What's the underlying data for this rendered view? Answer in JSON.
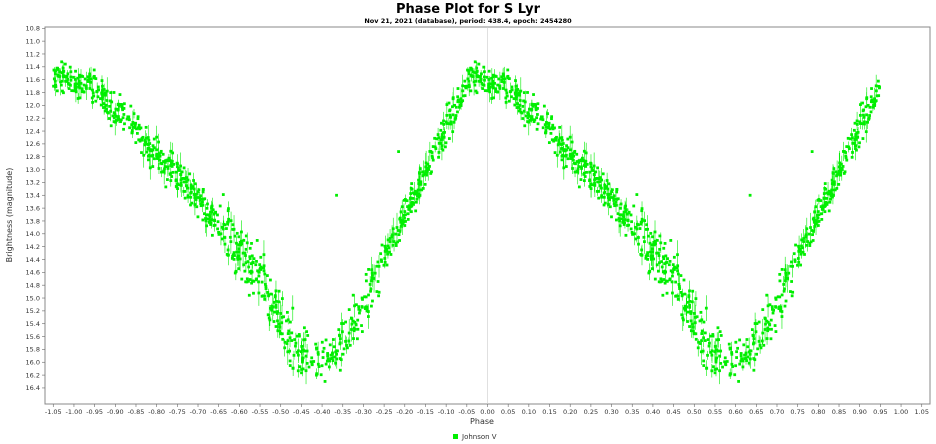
{
  "chart_data": {
    "type": "scatter",
    "title": "Phase Plot for S Lyr",
    "subtitle": "Nov 21, 2021 (database), period: 438.4, epoch: 2454280",
    "xlabel": "Phase",
    "ylabel": "Brightness (magnitude)",
    "xlim": [
      -1.07,
      1.07
    ],
    "ylim": [
      16.65,
      10.78
    ],
    "y_inverted": true,
    "x_ticks": [
      "-1.05",
      "-1.00",
      "-0.95",
      "-0.90",
      "-0.85",
      "-0.80",
      "-0.75",
      "-0.70",
      "-0.65",
      "-0.60",
      "-0.55",
      "-0.50",
      "-0.45",
      "-0.40",
      "-0.35",
      "-0.30",
      "-0.25",
      "-0.20",
      "-0.15",
      "-0.10",
      "-0.05",
      "0.00",
      "0.05",
      "0.10",
      "0.15",
      "0.20",
      "0.25",
      "0.30",
      "0.35",
      "0.40",
      "0.45",
      "0.50",
      "0.55",
      "0.60",
      "0.65",
      "0.70",
      "0.75",
      "0.80",
      "0.85",
      "0.90",
      "0.95",
      "1.00",
      "1.05"
    ],
    "y_ticks": [
      "10.8",
      "11.0",
      "11.2",
      "11.4",
      "11.6",
      "11.8",
      "12.0",
      "12.2",
      "12.4",
      "12.6",
      "12.8",
      "13.0",
      "13.2",
      "13.4",
      "13.6",
      "13.8",
      "14.0",
      "14.2",
      "14.4",
      "14.6",
      "14.8",
      "15.0",
      "15.2",
      "15.4",
      "15.6",
      "15.8",
      "16.0",
      "16.2",
      "16.4"
    ],
    "grid": false,
    "legend": "bottom-center",
    "series": [
      {
        "name": "Johnson V",
        "color": "#00ee00",
        "light_curve": {
          "phase": [
            -0.05,
            0.0,
            0.05,
            0.1,
            0.15,
            0.2,
            0.25,
            0.3,
            0.35,
            0.4,
            0.45,
            0.5,
            0.55,
            0.6,
            0.65,
            0.7,
            0.75,
            0.8,
            0.85,
            0.9,
            0.95
          ],
          "magnitude": [
            11.52,
            11.62,
            11.75,
            12.05,
            12.38,
            12.75,
            13.1,
            13.48,
            13.85,
            14.25,
            14.7,
            15.35,
            15.85,
            16.05,
            15.7,
            15.1,
            14.4,
            13.7,
            13.05,
            12.3,
            11.75
          ]
        },
        "outliers": [
          {
            "phase": -0.365,
            "magnitude": 13.4
          },
          {
            "phase": -0.215,
            "magnitude": 12.72
          },
          {
            "phase": 0.635,
            "magnitude": 13.4
          },
          {
            "phase": 0.785,
            "magnitude": 12.72
          }
        ]
      }
    ]
  }
}
